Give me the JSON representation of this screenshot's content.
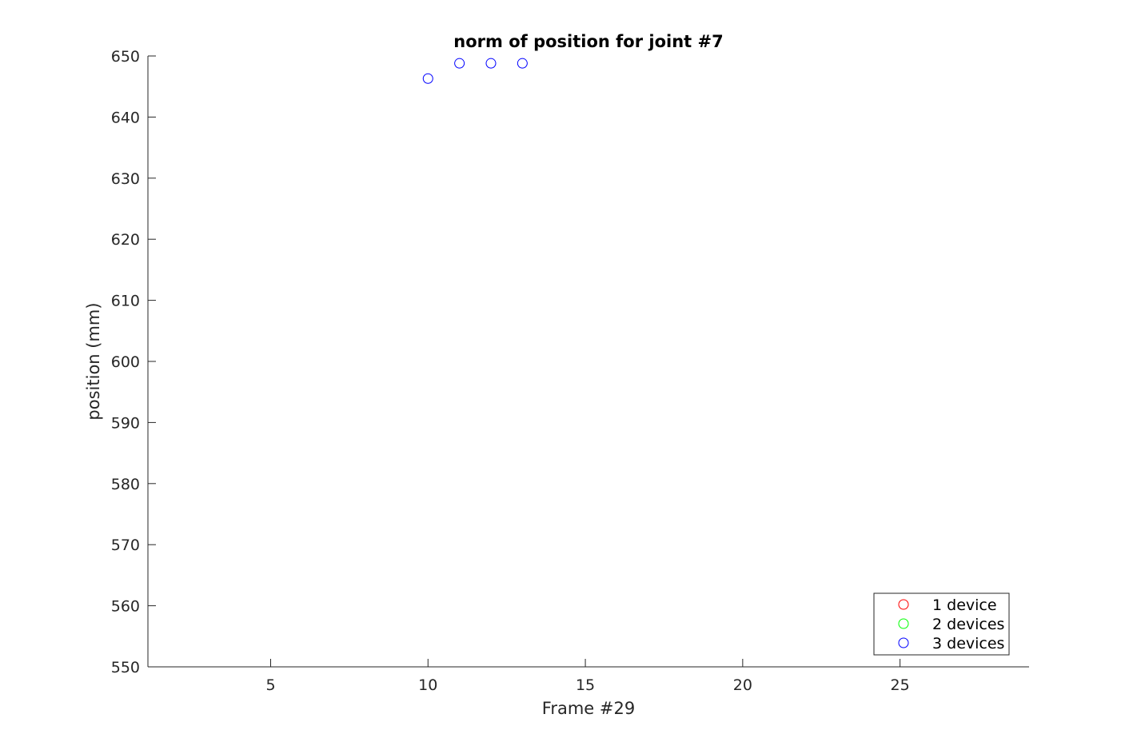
{
  "chart_data": {
    "type": "scatter",
    "title": "norm of position for joint #7",
    "xlabel": "Frame #29",
    "ylabel": "position (mm)",
    "xlim": [
      1.1,
      29.1
    ],
    "ylim": [
      550,
      650
    ],
    "xticks": [
      5,
      10,
      15,
      20,
      25
    ],
    "yticks": [
      550,
      560,
      570,
      580,
      590,
      600,
      610,
      620,
      630,
      640,
      650
    ],
    "grid": false,
    "legend_position": "bottom-right",
    "marker": "circle-open",
    "series": [
      {
        "name": "1 device",
        "color": "#ff0000",
        "points": []
      },
      {
        "name": "2 devices",
        "color": "#00ff00",
        "points": []
      },
      {
        "name": "3 devices",
        "color": "#0000ff",
        "points": [
          {
            "x": 10,
            "y": 646.3
          },
          {
            "x": 11,
            "y": 648.8
          },
          {
            "x": 12,
            "y": 648.8
          },
          {
            "x": 13,
            "y": 648.8
          }
        ]
      }
    ]
  }
}
